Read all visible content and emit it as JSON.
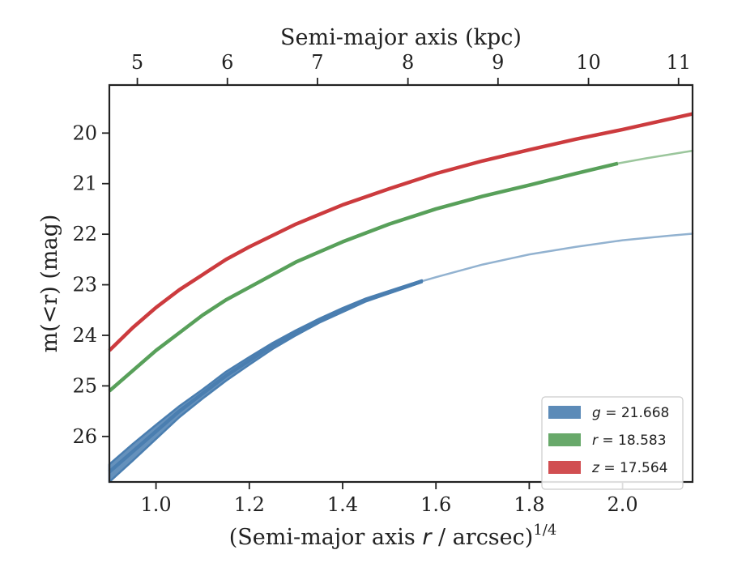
{
  "chart_data": {
    "type": "line",
    "xlabel_bottom": "(Semi-major axis r / arcsec)",
    "xlabel_bottom_var": "r",
    "xlabel_bottom_sup": "1/4",
    "xlabel_top": "Semi-major axis (kpc)",
    "ylabel": "m(<r) (mag)",
    "xlim": [
      0.9,
      2.15
    ],
    "ylim": [
      26.9,
      19.05
    ],
    "y_inverted": true,
    "grid": false,
    "legend_position": "lower-right",
    "x_ticks": [
      1.0,
      1.2,
      1.4,
      1.6,
      1.8,
      2.0
    ],
    "x_tick_labels": [
      "1.0",
      "1.2",
      "1.4",
      "1.6",
      "1.8",
      "2.0"
    ],
    "y_ticks": [
      20,
      21,
      22,
      23,
      24,
      25,
      26
    ],
    "y_tick_labels": [
      "20",
      "21",
      "22",
      "23",
      "24",
      "25",
      "26"
    ],
    "top_axis": {
      "label": "Semi-major axis (kpc)",
      "ticks_kpc": [
        5,
        6,
        7,
        8,
        9,
        10,
        11
      ],
      "tick_labels": [
        "5",
        "6",
        "7",
        "8",
        "9",
        "10",
        "11"
      ],
      "tick_positions_x": [
        0.96,
        1.153,
        1.346,
        1.54,
        1.733,
        1.927,
        2.12
      ]
    },
    "series": [
      {
        "name": "g = 21.668",
        "legend_var": "g",
        "legend_value": "= 21.668",
        "color": "#4a7eb0",
        "band": true,
        "solid_end_x": 1.57,
        "x": [
          0.9,
          0.95,
          1.0,
          1.05,
          1.1,
          1.15,
          1.2,
          1.25,
          1.3,
          1.35,
          1.4,
          1.45,
          1.5,
          1.57,
          1.6,
          1.7,
          1.8,
          1.9,
          2.0,
          2.1,
          2.15
        ],
        "y": [
          26.7,
          26.3,
          25.9,
          25.5,
          25.15,
          24.8,
          24.5,
          24.2,
          23.95,
          23.7,
          23.5,
          23.3,
          23.15,
          22.93,
          22.85,
          22.6,
          22.4,
          22.25,
          22.12,
          22.03,
          21.99
        ],
        "y_upper": [
          26.9,
          26.48,
          26.05,
          25.62,
          25.25,
          24.9,
          24.58,
          24.27,
          24.0,
          23.75,
          23.54,
          23.33,
          23.17,
          22.95,
          22.85,
          22.6,
          22.4,
          22.25,
          22.12,
          22.03,
          21.99
        ],
        "y_lower": [
          26.55,
          26.15,
          25.77,
          25.4,
          25.07,
          24.72,
          24.43,
          24.15,
          23.9,
          23.67,
          23.46,
          23.27,
          23.12,
          22.91,
          22.85,
          22.6,
          22.4,
          22.25,
          22.12,
          22.03,
          21.99
        ]
      },
      {
        "name": "r = 18.583",
        "legend_var": "r",
        "legend_value": "= 18.583",
        "color": "#58a05a",
        "band": false,
        "solid_end_x": 1.99,
        "x": [
          0.9,
          0.95,
          1.0,
          1.05,
          1.1,
          1.15,
          1.2,
          1.3,
          1.4,
          1.5,
          1.6,
          1.7,
          1.8,
          1.9,
          1.99,
          2.05,
          2.15
        ],
        "y": [
          25.1,
          24.7,
          24.3,
          23.95,
          23.6,
          23.3,
          23.05,
          22.55,
          22.15,
          21.8,
          21.5,
          21.25,
          21.03,
          20.8,
          20.6,
          20.5,
          20.35
        ]
      },
      {
        "name": "z = 17.564",
        "legend_var": "z",
        "legend_value": "= 17.564",
        "color": "#cc3b3e",
        "band": false,
        "solid_end_x": 2.15,
        "x": [
          0.9,
          0.95,
          1.0,
          1.05,
          1.1,
          1.15,
          1.2,
          1.3,
          1.4,
          1.5,
          1.6,
          1.7,
          1.8,
          1.9,
          2.0,
          2.15
        ],
        "y": [
          24.3,
          23.85,
          23.45,
          23.1,
          22.8,
          22.5,
          22.25,
          21.8,
          21.42,
          21.1,
          20.8,
          20.55,
          20.33,
          20.12,
          19.93,
          19.62
        ]
      }
    ]
  }
}
